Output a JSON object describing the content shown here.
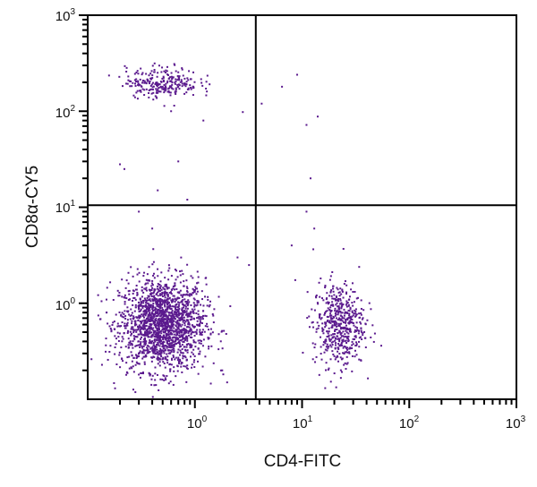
{
  "chart_data": {
    "type": "scatter",
    "title": "",
    "xlabel": "CD4-FITC",
    "ylabel": "CD8α-CY5",
    "x_scale": "log",
    "y_scale": "log",
    "xlim": [
      0.1,
      1000
    ],
    "ylim": [
      0.1,
      1000
    ],
    "x_ticks": [
      {
        "value": 1,
        "base": "10",
        "exp": "0"
      },
      {
        "value": 10,
        "base": "10",
        "exp": "1"
      },
      {
        "value": 100,
        "base": "10",
        "exp": "2"
      },
      {
        "value": 1000,
        "base": "10",
        "exp": "3"
      }
    ],
    "y_ticks": [
      {
        "value": 1,
        "base": "10",
        "exp": "0"
      },
      {
        "value": 10,
        "base": "10",
        "exp": "1"
      },
      {
        "value": 100,
        "base": "10",
        "exp": "2"
      },
      {
        "value": 1000,
        "base": "10",
        "exp": "3"
      }
    ],
    "grid": false,
    "quadrant_gates": {
      "x": 3.7,
      "y": 10.5
    },
    "point_color": "#5b1a8e",
    "populations": [
      {
        "quadrant": "CD4-CD8-",
        "center": [
          0.5,
          0.6
        ],
        "log_sd": [
          0.2,
          0.24
        ],
        "count": 1800
      },
      {
        "quadrant": "CD4+CD8-",
        "center": [
          22,
          0.6
        ],
        "log_sd": [
          0.12,
          0.22
        ],
        "count": 520
      },
      {
        "quadrant": "CD4-CD8+",
        "center": [
          0.5,
          200
        ],
        "log_sd": [
          0.17,
          0.08
        ],
        "count": 260
      }
    ],
    "outliers": [
      [
        0.2,
        28
      ],
      [
        0.22,
        25
      ],
      [
        0.7,
        30
      ],
      [
        0.45,
        15
      ],
      [
        0.85,
        12
      ],
      [
        2.8,
        98
      ],
      [
        4.2,
        120
      ],
      [
        6.5,
        180
      ],
      [
        9,
        240
      ],
      [
        11,
        72
      ],
      [
        14,
        88
      ],
      [
        12,
        20
      ],
      [
        0.6,
        100
      ],
      [
        1.2,
        80
      ],
      [
        0.4,
        6
      ],
      [
        0.3,
        9
      ],
      [
        2.5,
        3
      ],
      [
        3.2,
        2.5
      ],
      [
        11,
        9
      ],
      [
        13,
        6
      ],
      [
        8,
        4
      ],
      [
        0.18,
        0.13
      ],
      [
        1.8,
        0.2
      ],
      [
        2,
        0.15
      ],
      [
        0.15,
        0.8
      ]
    ]
  }
}
